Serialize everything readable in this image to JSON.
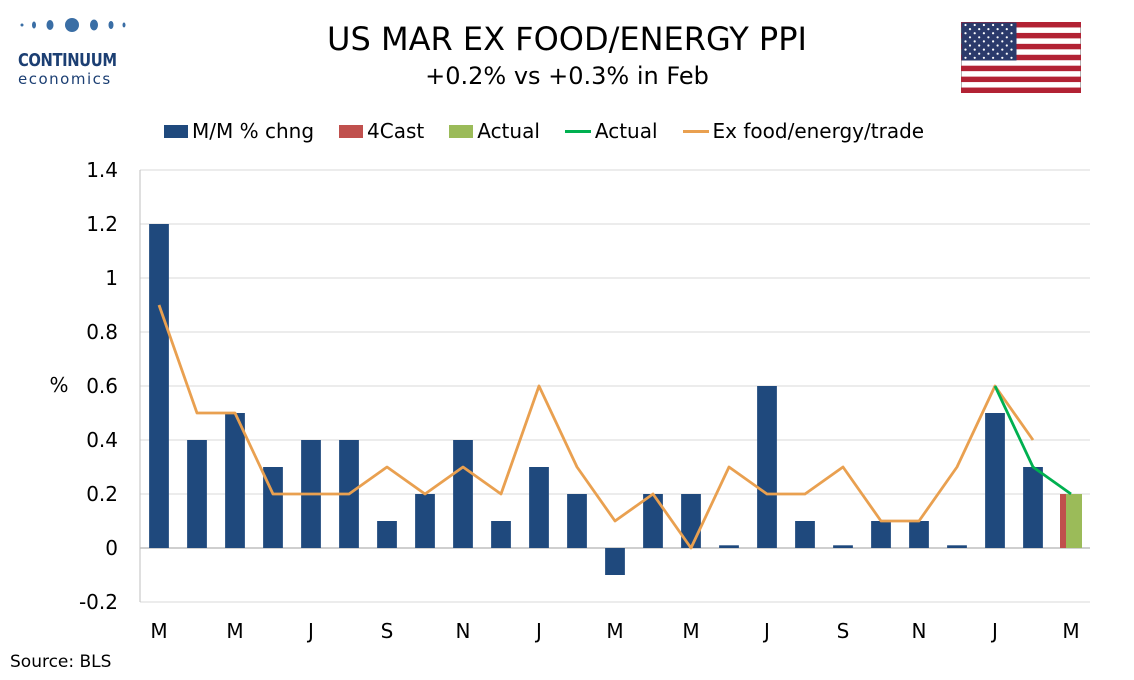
{
  "logo": {
    "name": "CONTINUUM",
    "sub": "economics"
  },
  "header": {
    "title": "US MAR EX FOOD/ENERGY PPI",
    "subtitle": "+0.2% vs +0.3% in Feb"
  },
  "flag": {
    "icon": "us-flag-icon"
  },
  "source": "Source: BLS",
  "colors": {
    "mm_bar": "#1f497d",
    "forecast_bar": "#c0504d",
    "actual_bar": "#9bbb59",
    "actual_line": "#00b050",
    "ex_line": "#e9a050"
  },
  "legend": {
    "mm": "M/M % chng",
    "forecast": "4Cast",
    "actual_bar": "Actual",
    "actual_line": "Actual",
    "ex": "Ex food/energy/trade"
  },
  "chart_data": {
    "type": "bar",
    "ylabel": "%",
    "ylim": [
      -0.2,
      1.4
    ],
    "yticks": [
      -0.2,
      0,
      0.2,
      0.4,
      0.6,
      0.8,
      1,
      1.2,
      1.4
    ],
    "grid": true,
    "legend_position": "top",
    "x_tick_labels": [
      "M",
      "M",
      "J",
      "S",
      "N",
      "J",
      "M",
      "M",
      "J",
      "S",
      "N",
      "J",
      "M"
    ],
    "series": [
      {
        "name": "M/M % chng",
        "type": "bar",
        "values": [
          1.2,
          0.4,
          0.5,
          0.3,
          0.4,
          0.4,
          0.1,
          0.2,
          0.4,
          0.1,
          0.3,
          0.2,
          -0.1,
          0.2,
          0.2,
          0.01,
          0.6,
          0.1,
          0.01,
          0.1,
          0.1,
          0.01,
          0.5,
          0.3,
          null
        ]
      },
      {
        "name": "4Cast",
        "type": "bar",
        "values": [
          null,
          null,
          null,
          null,
          null,
          null,
          null,
          null,
          null,
          null,
          null,
          null,
          null,
          null,
          null,
          null,
          null,
          null,
          null,
          null,
          null,
          null,
          null,
          null,
          0.2
        ]
      },
      {
        "name": "Actual",
        "type": "bar",
        "values": [
          null,
          null,
          null,
          null,
          null,
          null,
          null,
          null,
          null,
          null,
          null,
          null,
          null,
          null,
          null,
          null,
          null,
          null,
          null,
          null,
          null,
          null,
          null,
          null,
          0.2
        ]
      },
      {
        "name": "Actual",
        "type": "line",
        "values": [
          null,
          null,
          null,
          null,
          null,
          null,
          null,
          null,
          null,
          null,
          null,
          null,
          null,
          null,
          null,
          null,
          null,
          null,
          null,
          null,
          null,
          null,
          0.6,
          0.3,
          0.2
        ]
      },
      {
        "name": "Ex food/energy/trade",
        "type": "line",
        "values": [
          0.9,
          0.5,
          0.5,
          0.2,
          0.2,
          0.2,
          0.3,
          0.2,
          0.3,
          0.2,
          0.6,
          0.3,
          0.1,
          0.2,
          0.0,
          0.3,
          0.2,
          0.2,
          0.3,
          0.1,
          0.1,
          0.3,
          0.6,
          0.4,
          null
        ]
      }
    ]
  }
}
